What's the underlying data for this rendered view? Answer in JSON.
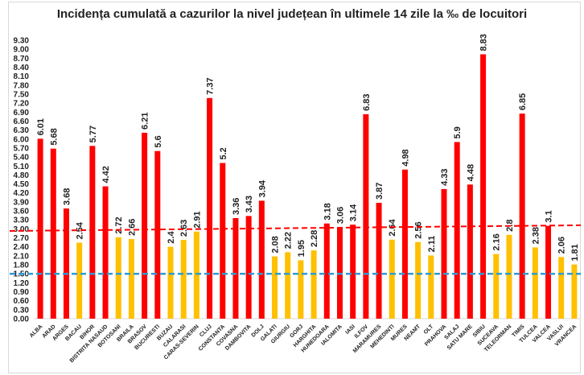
{
  "chart_data": {
    "type": "bar",
    "title": "Incidența cumulată a cazurilor la nivel județean în ultimele 14 zile la ‰ de locuitori",
    "categories": [
      "ALBA",
      "ARAD",
      "ARGES",
      "BACAU",
      "BIHOR",
      "BISTRITA NASAUD",
      "BOTOSANI",
      "BRAILA",
      "BRASOV",
      "BUCURESTI",
      "BUZAU",
      "CALARASI",
      "CARAS-SEVERIN",
      "CLUJ",
      "CONSTANTA",
      "COVASNA",
      "DAMBOVITA",
      "DOLJ",
      "GALATI",
      "GIURGIU",
      "GORJ",
      "HARGHITA",
      "HUNEDOARA",
      "IALOMITA",
      "IASI",
      "ILFOV",
      "MARAMURES",
      "MEHEDINTI",
      "MURES",
      "NEAMT",
      "OLT",
      "PRAHOVA",
      "SALAJ",
      "SATU MARE",
      "SIBIU",
      "SUCEAVA",
      "TELEORMAN",
      "TIMIS",
      "TULCEA",
      "VALCEA",
      "VASLUI",
      "VRANCEA"
    ],
    "values": [
      6.01,
      5.68,
      3.68,
      2.54,
      5.77,
      4.42,
      2.72,
      2.66,
      6.21,
      5.6,
      2.4,
      2.63,
      2.91,
      7.37,
      5.2,
      3.36,
      3.43,
      3.94,
      2.08,
      2.22,
      1.95,
      2.28,
      3.18,
      3.06,
      3.14,
      6.83,
      3.87,
      2.64,
      4.98,
      2.56,
      2.11,
      4.33,
      5.9,
      4.48,
      8.83,
      2.16,
      2.8,
      6.85,
      2.38,
      3.1,
      2.06,
      1.81
    ],
    "data_labels": [
      "6.01",
      "5.68",
      "3.68",
      "2.54",
      "5.77",
      "4.42",
      "2.72",
      "2.66",
      "6.21",
      "5.6",
      "2.4",
      "2.63",
      "2.91",
      "7.37",
      "5.2",
      "3.36",
      "3.43",
      "3.94",
      "2.08",
      "2.22",
      "1.95",
      "2.28",
      "3.18",
      "3.06",
      "3.14",
      "6.83",
      "3.87",
      "2.64",
      "4.98",
      "2.56",
      "2.11",
      "4.33",
      "5.9",
      "4.48",
      "8.83",
      "2.16",
      "2.8",
      "6.85",
      "2.38",
      "3.1",
      "2.06",
      "1.81"
    ],
    "ylim": [
      0,
      9.3
    ],
    "ytick_step": 0.3,
    "grid": false,
    "colors": {
      "above_threshold": "#FF0000",
      "below_threshold": "#FFC000",
      "threshold_line": "#FF0000",
      "reference_line": "#2E9BD6"
    },
    "threshold_line": {
      "start": 2.93,
      "end": 3.12,
      "style": "dashed"
    },
    "reference_line": {
      "value": 1.5,
      "style": "dashed"
    }
  }
}
